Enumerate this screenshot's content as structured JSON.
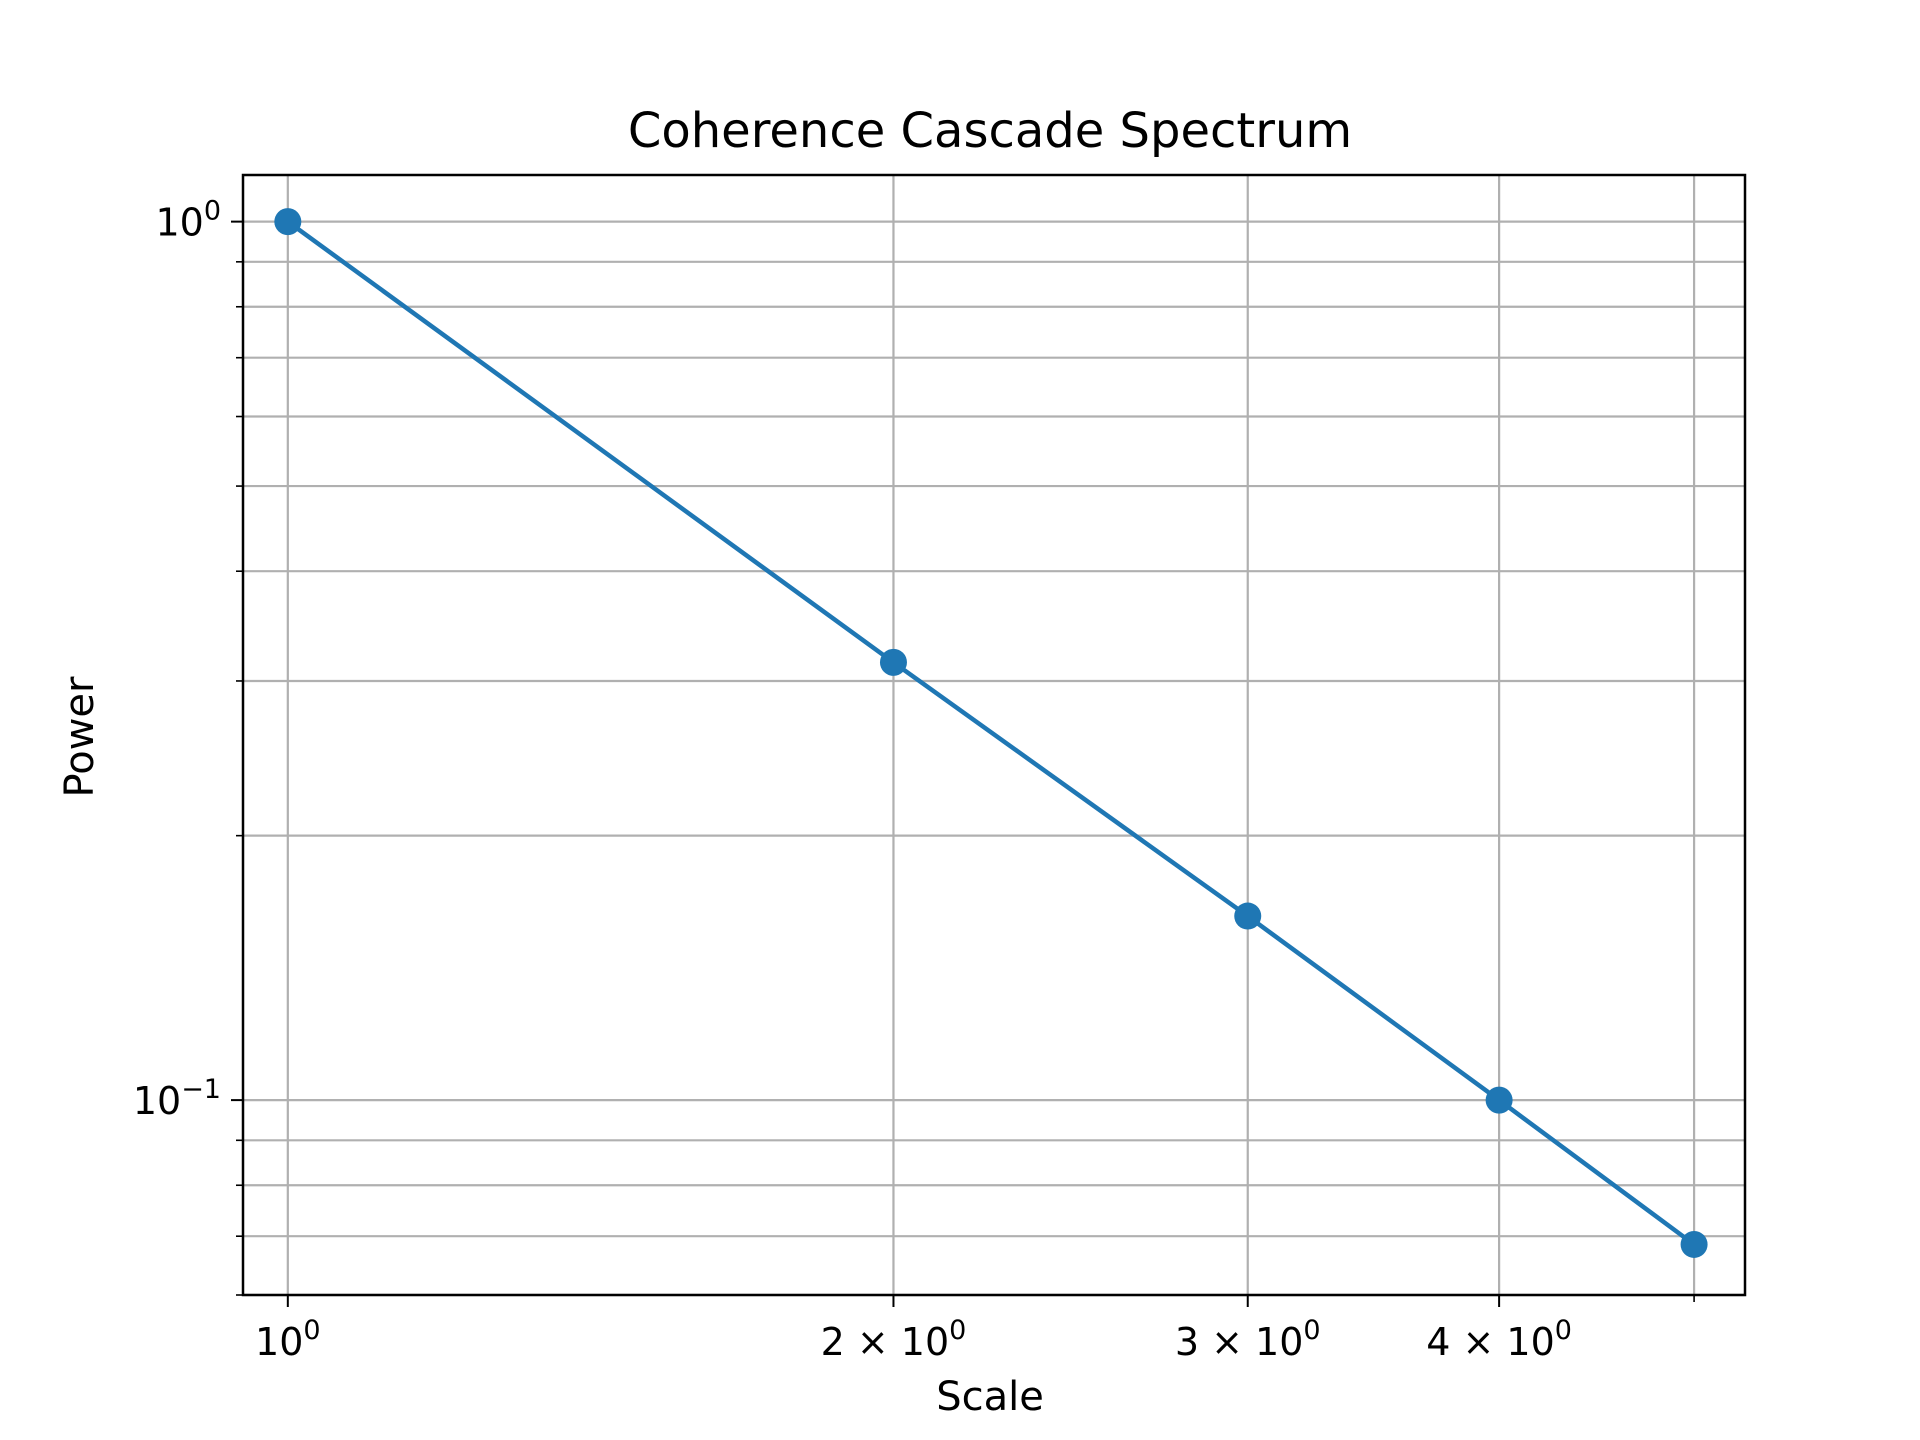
{
  "chart_data": {
    "type": "line",
    "title": "Coherence Cascade Spectrum",
    "xlabel": "Scale",
    "ylabel": "Power",
    "xscale": "log",
    "yscale": "log",
    "xlim": [
      0.95,
      5.3
    ],
    "ylim": [
      0.06,
      1.13
    ],
    "grid": true,
    "grid_which": "both",
    "color": "#1f77b4",
    "marker": "circle",
    "x": [
      1,
      2,
      3,
      4,
      5
    ],
    "y": [
      1.0,
      0.315,
      0.162,
      0.1,
      0.0685
    ],
    "x_ticks": [
      {
        "value": 1,
        "mantissa": "",
        "base": "10",
        "exp": "0"
      },
      {
        "value": 2,
        "mantissa": "2",
        "base": "10",
        "exp": "0"
      },
      {
        "value": 3,
        "mantissa": "3",
        "base": "10",
        "exp": "0"
      },
      {
        "value": 4,
        "mantissa": "4",
        "base": "10",
        "exp": "0"
      }
    ],
    "x_minor_ticks": [
      5
    ],
    "y_ticks": [
      {
        "value": 1,
        "base": "10",
        "exp": "0"
      },
      {
        "value": 0.1,
        "base": "10",
        "exp": "−1"
      }
    ],
    "y_minor_ticks": [
      0.06,
      0.07,
      0.08,
      0.09,
      0.2,
      0.3,
      0.4,
      0.5,
      0.6,
      0.7,
      0.8,
      0.9
    ]
  }
}
